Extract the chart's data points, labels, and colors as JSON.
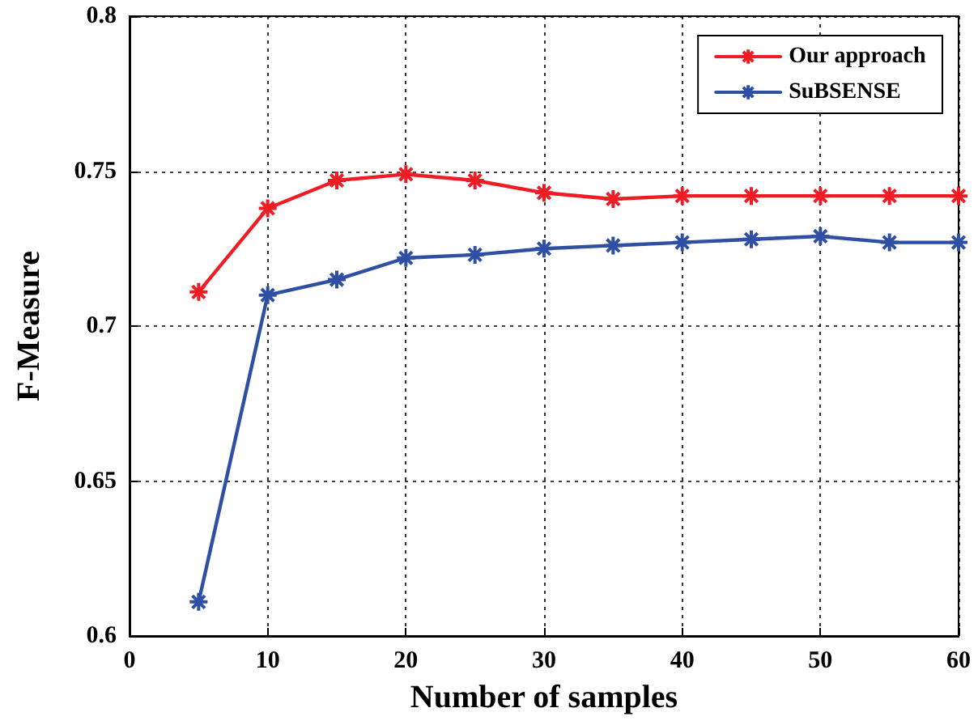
{
  "chart_data": {
    "type": "line",
    "xlabel": "Number of samples",
    "ylabel": "F-Measure",
    "x": [
      5,
      10,
      15,
      20,
      25,
      30,
      35,
      40,
      45,
      50,
      55,
      60
    ],
    "series": [
      {
        "name": "Our approach",
        "color": "#ee1c25",
        "values": [
          0.711,
          0.738,
          0.747,
          0.749,
          0.747,
          0.743,
          0.741,
          0.742,
          0.742,
          0.742,
          0.742,
          0.742
        ]
      },
      {
        "name": "SuBSENSE",
        "color": "#2e4fa3",
        "values": [
          0.611,
          0.71,
          0.715,
          0.722,
          0.723,
          0.725,
          0.726,
          0.727,
          0.728,
          0.729,
          0.727,
          0.727
        ]
      }
    ],
    "xlim": [
      0,
      60
    ],
    "xticks": [
      0,
      10,
      20,
      30,
      40,
      50,
      60
    ],
    "ylim": [
      0.6,
      0.8
    ],
    "yticks": [
      0.6,
      0.65,
      0.7,
      0.75,
      0.8
    ],
    "grid": true,
    "legend": "top right",
    "marker": "cross",
    "line_style": "solid"
  }
}
